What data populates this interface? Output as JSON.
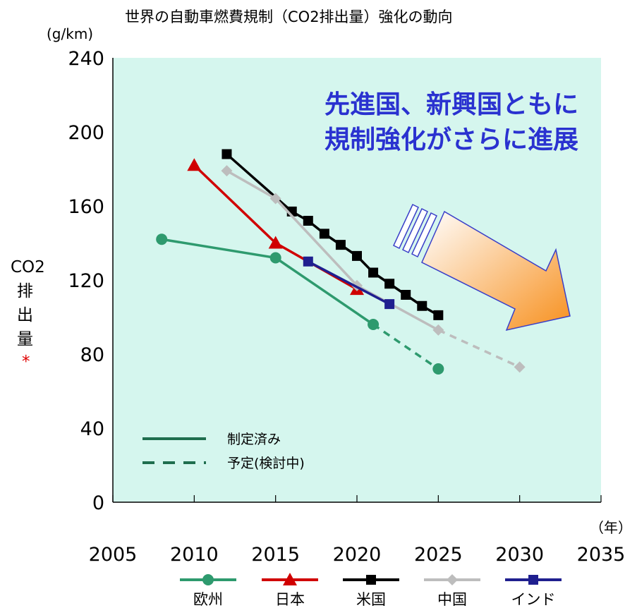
{
  "chart_data": {
    "type": "line",
    "title": "世界の自動車燃費規制（CO2排出量）強化の動向",
    "y_unit": "(g/km)",
    "x_unit": "（年）",
    "ylabel_lines": [
      "CO2",
      "排",
      "出",
      "量"
    ],
    "ylabel_mark": "*",
    "xlim": [
      2005,
      2035
    ],
    "ylim": [
      0,
      240
    ],
    "x_ticks": [
      "2005",
      "2010",
      "2015",
      "2020",
      "2025",
      "2030",
      "2035"
    ],
    "y_ticks": [
      "0",
      "40",
      "80",
      "120",
      "160",
      "200",
      "240"
    ],
    "grid": false,
    "annotation_lines": [
      "先進国、新興国ともに",
      "規制強化がさらに進展"
    ],
    "line_style_legend": [
      {
        "label": "制定済み",
        "style": "solid"
      },
      {
        "label": "予定(検討中)",
        "style": "dashed"
      }
    ],
    "legend_position": "bottom",
    "series": [
      {
        "name": "欧州",
        "color": "#2e9a6e",
        "marker": "circle",
        "points": [
          {
            "x": 2008,
            "y": 142
          },
          {
            "x": 2015,
            "y": 132
          },
          {
            "x": 2021,
            "y": 96
          },
          {
            "x": 2025,
            "y": 72
          }
        ],
        "planned_from_index": 2
      },
      {
        "name": "日本",
        "color": "#d00000",
        "marker": "triangle",
        "points": [
          {
            "x": 2010,
            "y": 182
          },
          {
            "x": 2015,
            "y": 140
          },
          {
            "x": 2020,
            "y": 115
          }
        ],
        "planned_from_index": null
      },
      {
        "name": "米国",
        "color": "#000000",
        "marker": "square",
        "points": [
          {
            "x": 2012,
            "y": 188
          },
          {
            "x": 2016,
            "y": 157
          },
          {
            "x": 2017,
            "y": 152
          },
          {
            "x": 2018,
            "y": 145
          },
          {
            "x": 2019,
            "y": 139
          },
          {
            "x": 2020,
            "y": 133
          },
          {
            "x": 2021,
            "y": 124
          },
          {
            "x": 2022,
            "y": 118
          },
          {
            "x": 2023,
            "y": 112
          },
          {
            "x": 2024,
            "y": 106
          },
          {
            "x": 2025,
            "y": 101
          }
        ],
        "planned_from_index": null
      },
      {
        "name": "中国",
        "color": "#bdbdbd",
        "marker": "diamond",
        "points": [
          {
            "x": 2012,
            "y": 179
          },
          {
            "x": 2015,
            "y": 164
          },
          {
            "x": 2020,
            "y": 117
          },
          {
            "x": 2025,
            "y": 93
          },
          {
            "x": 2030,
            "y": 73
          }
        ],
        "planned_from_index": 3
      },
      {
        "name": "インド",
        "color": "#1f1f8f",
        "marker": "square",
        "points": [
          {
            "x": 2017,
            "y": 130
          },
          {
            "x": 2022,
            "y": 107
          }
        ],
        "planned_from_index": null
      }
    ]
  }
}
